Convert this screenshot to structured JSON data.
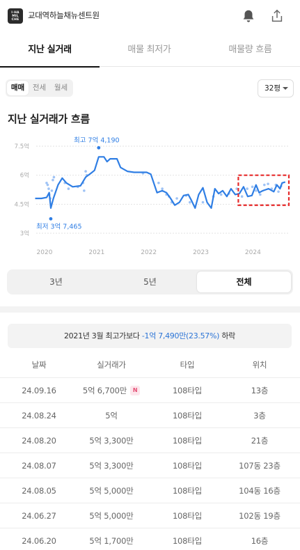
{
  "header": {
    "logo_lines": [
      "I·HA",
      "MIL",
      "CHE"
    ],
    "title": "교대역하늘채뉴센트원",
    "icons": [
      "bell-icon",
      "share-icon"
    ]
  },
  "tabs": [
    {
      "label": "지난 실거래",
      "active": true
    },
    {
      "label": "매물 최저가",
      "active": false
    },
    {
      "label": "매물량 흐름",
      "active": false
    }
  ],
  "deal_type": {
    "options": [
      "매매",
      "전세",
      "월세"
    ],
    "selected": "매매"
  },
  "area": {
    "selected": "32평"
  },
  "section_title": "지난 실거래가 흐름",
  "chart_data": {
    "type": "line",
    "title": "지난 실거래가 흐름",
    "xlabel": "",
    "ylabel": "",
    "x_ticks": [
      "2020",
      "2021",
      "2022",
      "2023",
      "2024"
    ],
    "y_ticks": [
      "7.5억",
      "6억",
      "4.5억",
      "3억"
    ],
    "ylim": [
      3,
      7.5
    ],
    "xlim": [
      2020,
      2024.85
    ],
    "grid": true,
    "max_label": "최고 7억 4,190",
    "min_label": "최저 3억 7,465",
    "max": {
      "x": 2021.2,
      "y": 7.419
    },
    "min": {
      "x": 2020.28,
      "y": 3.7465
    },
    "series": [
      {
        "values": [
          [
            2019.98,
            4.8
          ],
          [
            2020.1,
            4.8
          ],
          [
            2020.2,
            4.85
          ],
          [
            2020.25,
            5.1
          ],
          [
            2020.28,
            4.3
          ],
          [
            2020.33,
            4.8
          ],
          [
            2020.42,
            5.5
          ],
          [
            2020.5,
            5.85
          ],
          [
            2020.58,
            5.6
          ],
          [
            2020.7,
            5.4
          ],
          [
            2020.85,
            5.45
          ],
          [
            2020.95,
            5.9
          ],
          [
            2021.05,
            6.1
          ],
          [
            2021.12,
            6.25
          ],
          [
            2021.2,
            6.95
          ],
          [
            2021.3,
            6.95
          ],
          [
            2021.36,
            6.7
          ],
          [
            2021.42,
            6.85
          ],
          [
            2021.55,
            6.85
          ],
          [
            2021.62,
            6.4
          ],
          [
            2021.75,
            6.2
          ],
          [
            2021.88,
            6.15
          ],
          [
            2022.05,
            6.15
          ],
          [
            2022.12,
            6.15
          ],
          [
            2022.2,
            6.05
          ],
          [
            2022.32,
            5.1
          ],
          [
            2022.42,
            5.2
          ],
          [
            2022.5,
            5.1
          ],
          [
            2022.58,
            4.8
          ],
          [
            2022.66,
            4.45
          ],
          [
            2022.75,
            4.6
          ],
          [
            2022.83,
            4.95
          ],
          [
            2022.92,
            5.0
          ],
          [
            2022.98,
            4.7
          ],
          [
            2023.05,
            4.3
          ],
          [
            2023.12,
            5.0
          ],
          [
            2023.2,
            5.35
          ],
          [
            2023.28,
            4.6
          ],
          [
            2023.36,
            4.3
          ],
          [
            2023.43,
            5.3
          ],
          [
            2023.5,
            5.05
          ],
          [
            2023.58,
            5.2
          ],
          [
            2023.66,
            4.9
          ],
          [
            2023.74,
            5.3
          ],
          [
            2023.82,
            5.0
          ],
          [
            2023.9,
            5.05
          ],
          [
            2023.98,
            5.4
          ],
          [
            2024.06,
            4.9
          ],
          [
            2024.14,
            4.95
          ],
          [
            2024.22,
            5.5
          ],
          [
            2024.28,
            5.1
          ],
          [
            2024.35,
            5.2
          ],
          [
            2024.46,
            5.3
          ],
          [
            2024.56,
            5.15
          ],
          [
            2024.62,
            5.5
          ],
          [
            2024.68,
            5.3
          ],
          [
            2024.72,
            5.6
          ],
          [
            2024.78,
            5.65
          ]
        ]
      }
    ],
    "transactions": [
      [
        2020.2,
        5.6
      ],
      [
        2020.22,
        5.5
      ],
      [
        2020.24,
        5.3
      ],
      [
        2020.25,
        5.0
      ],
      [
        2020.27,
        4.8
      ],
      [
        2020.28,
        3.7465
      ],
      [
        2020.3,
        5.2
      ],
      [
        2020.32,
        5.75
      ],
      [
        2020.34,
        5.9
      ],
      [
        2020.55,
        5.6
      ],
      [
        2020.62,
        5.3
      ],
      [
        2020.8,
        5.4
      ],
      [
        2020.9,
        5.6
      ],
      [
        2020.92,
        5.2
      ],
      [
        2020.95,
        6.2
      ],
      [
        2020.97,
        6.0
      ],
      [
        2021.2,
        7.419
      ],
      [
        2022.05,
        6.1
      ],
      [
        2022.35,
        5.6
      ],
      [
        2022.42,
        5.3
      ],
      [
        2022.5,
        5.0
      ],
      [
        2022.55,
        4.9
      ],
      [
        2022.6,
        4.6
      ],
      [
        2022.7,
        4.8
      ],
      [
        2022.88,
        4.95
      ],
      [
        2022.95,
        4.6
      ],
      [
        2023.2,
        4.6
      ],
      [
        2023.4,
        4.9
      ],
      [
        2023.55,
        5.0
      ],
      [
        2023.7,
        5.05
      ],
      [
        2023.85,
        5.3
      ],
      [
        2023.95,
        4.9
      ],
      [
        2024.05,
        5.3
      ],
      [
        2024.15,
        5.4
      ],
      [
        2024.22,
        5.2
      ],
      [
        2024.3,
        5.0
      ],
      [
        2024.38,
        5.5
      ],
      [
        2024.45,
        5.55
      ],
      [
        2024.52,
        5.3
      ],
      [
        2024.6,
        5.5
      ],
      [
        2024.65,
        5.15
      ],
      [
        2024.7,
        5.43
      ]
    ],
    "highlight": {
      "x_range": [
        2023.88,
        2024.85
      ],
      "y_range": [
        4.45,
        6.0
      ]
    },
    "colors": {
      "line": "#2f7ee4",
      "dots": "#9fc3f5",
      "grid": "#e2e2e2",
      "highlight": "#e62a2a"
    }
  },
  "range": {
    "options": [
      "3년",
      "5년",
      "전체"
    ],
    "selected": "전체"
  },
  "compare": {
    "prefix": "2021년 3월 최고가보다",
    "diff": "-1억 7,490만(23.57%)",
    "suffix": "하락"
  },
  "table": {
    "headers": [
      "날짜",
      "실거래가",
      "타입",
      "위치"
    ],
    "rows": [
      {
        "date": "24.09.16",
        "price": "5억 6,700만",
        "badge": "N",
        "type": "108타입",
        "location": "13층"
      },
      {
        "date": "24.08.24",
        "price": "5억",
        "badge": "",
        "type": "108타입",
        "location": "3층"
      },
      {
        "date": "24.08.20",
        "price": "5억 3,300만",
        "badge": "",
        "type": "108타입",
        "location": "21층"
      },
      {
        "date": "24.08.07",
        "price": "5억 3,300만",
        "badge": "",
        "type": "108타입",
        "location": "107동 23층"
      },
      {
        "date": "24.08.05",
        "price": "5억 5,000만",
        "badge": "",
        "type": "108타입",
        "location": "104동 16층"
      },
      {
        "date": "24.06.27",
        "price": "5억 5,000만",
        "badge": "",
        "type": "108타입",
        "location": "102동 19층"
      },
      {
        "date": "24.06.20",
        "price": "5억 1,700만",
        "badge": "",
        "type": "108타입",
        "location": "16층"
      }
    ]
  }
}
